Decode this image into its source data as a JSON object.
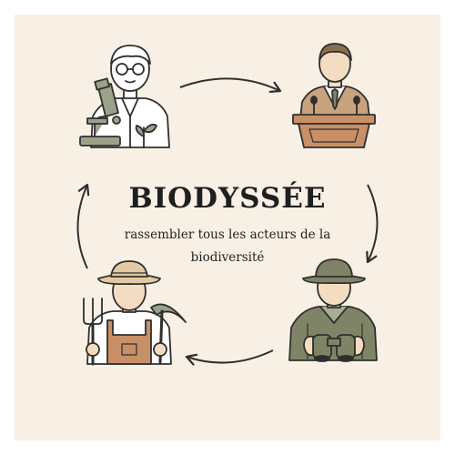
{
  "title": "BIODYSSÉE",
  "subtitle": "rassembler tous les acteurs de la biodiversité",
  "actors": [
    {
      "role": "scientist",
      "icon": "scientist-with-microscope-icon"
    },
    {
      "role": "politician",
      "icon": "speaker-at-podium-icon"
    },
    {
      "role": "naturalist",
      "icon": "birdwatcher-with-binoculars-icon"
    },
    {
      "role": "farmer",
      "icon": "farmer-with-tools-icon"
    }
  ],
  "colors": {
    "background": "#f8f0e4",
    "outline": "#2f2f2f",
    "sage": "#9aa38a",
    "olive": "#7f8466",
    "terracotta": "#c98f66",
    "tan": "#e2c9a2"
  }
}
